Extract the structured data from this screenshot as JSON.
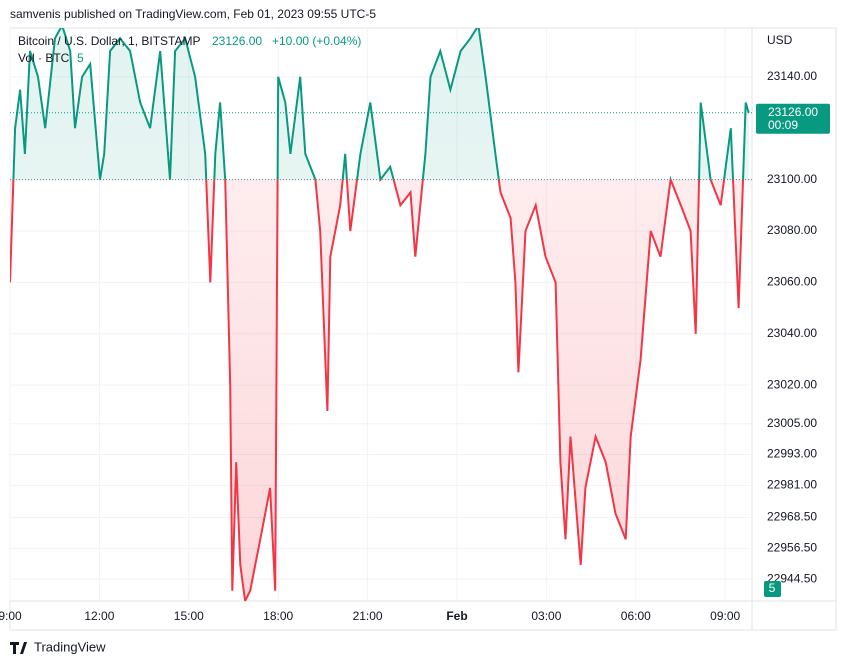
{
  "chart_data": {
    "type": "line",
    "header": "samvenis published on TradingView.com, Feb 01, 2023 09:55 UTC-5",
    "brand": "TradingView",
    "y_axis_label": "USD",
    "volume_label": "Vol · BTC",
    "volume_value": 5,
    "change_label": "+10.00 (+0.04%)",
    "baseline": 23100,
    "last_price": 23126,
    "last_price_label": "23126.00",
    "countdown": "00:09",
    "grid": true,
    "x": [
      9.0,
      9.17,
      9.34,
      9.5,
      9.67,
      9.94,
      10.18,
      10.51,
      10.75,
      11.02,
      11.18,
      11.42,
      11.69,
      12.02,
      12.16,
      12.36,
      12.69,
      13.03,
      13.37,
      13.7,
      14.04,
      14.37,
      14.54,
      14.88,
      15.21,
      15.55,
      15.72,
      15.89,
      16.05,
      16.22,
      16.39,
      16.46,
      16.59,
      16.73,
      16.89,
      17.06,
      17.23,
      17.4,
      17.73,
      17.9,
      18.0,
      18.24,
      18.41,
      18.74,
      18.91,
      19.25,
      19.41,
      19.58,
      19.65,
      19.75,
      20.08,
      20.25,
      20.42,
      20.76,
      21.09,
      21.43,
      21.76,
      22.1,
      22.44,
      22.6,
      22.77,
      22.94,
      23.11,
      23.44,
      23.78,
      24.12,
      24.45,
      24.72,
      24.96,
      25.29,
      25.46,
      25.8,
      25.96,
      26.06,
      26.3,
      26.64,
      26.97,
      27.31,
      27.47,
      27.64,
      27.81,
      28.15,
      28.31,
      28.65,
      28.99,
      29.32,
      29.66,
      29.83,
      30.16,
      30.5,
      30.83,
      31.17,
      31.51,
      31.84,
      32.01,
      32.18,
      32.51,
      32.85,
      33.19,
      33.45,
      33.69,
      33.79
    ],
    "series": [
      {
        "name": "Bitcoin / U.S. Dollar, 1, BITSTAMP",
        "color_up": "#089981",
        "color_down": "#f23645",
        "values": [
          23060,
          23120,
          23135,
          23110,
          23150,
          23140,
          23120,
          23155,
          23160,
          23150,
          23120,
          23140,
          23145,
          23100,
          23110,
          23150,
          23155,
          23150,
          23130,
          23120,
          23150,
          23100,
          23150,
          23155,
          23140,
          23110,
          23060,
          23110,
          23130,
          23100,
          23020,
          22940,
          22990,
          22950,
          22936,
          22940,
          22950,
          22960,
          22980,
          22940,
          23140,
          23130,
          23110,
          23140,
          23110,
          23100,
          23080,
          23030,
          23010,
          23070,
          23090,
          23110,
          23080,
          23110,
          23130,
          23100,
          23105,
          23090,
          23095,
          23070,
          23090,
          23110,
          23140,
          23150,
          23135,
          23150,
          23155,
          23160,
          23140,
          23110,
          23095,
          23085,
          23060,
          23025,
          23080,
          23090,
          23070,
          23060,
          22990,
          22960,
          23000,
          22950,
          22980,
          23000,
          22990,
          22970,
          22960,
          23000,
          23030,
          23080,
          23070,
          23100,
          23090,
          23080,
          23040,
          23130,
          23100,
          23090,
          23120,
          23050,
          23130,
          23126
        ]
      }
    ],
    "xlim": [
      9,
      33.9
    ],
    "xticks": [
      {
        "value": 9,
        "label": "9:00"
      },
      {
        "value": 12,
        "label": "12:00"
      },
      {
        "value": 15,
        "label": "15:00"
      },
      {
        "value": 18,
        "label": "18:00"
      },
      {
        "value": 21,
        "label": "21:00"
      },
      {
        "value": 24,
        "label": "Feb"
      },
      {
        "value": 27,
        "label": "03:00"
      },
      {
        "value": 30,
        "label": "06:00"
      },
      {
        "value": 33,
        "label": "09:00"
      }
    ],
    "ylim": [
      22936,
      23159
    ],
    "yticks": [
      {
        "value": 23140,
        "label": "23140.00"
      },
      {
        "value": 23100,
        "label": "23100.00"
      },
      {
        "value": 23080,
        "label": "23080.00"
      },
      {
        "value": 23060,
        "label": "23060.00"
      },
      {
        "value": 23040,
        "label": "23040.00"
      },
      {
        "value": 23020,
        "label": "23020.00"
      },
      {
        "value": 23005,
        "label": "23005.00"
      },
      {
        "value": 22993,
        "label": "22993.00"
      },
      {
        "value": 22981,
        "label": "22981.00"
      },
      {
        "value": 22968.5,
        "label": "22968.50"
      },
      {
        "value": 22956.5,
        "label": "22956.50"
      },
      {
        "value": 22944.5,
        "label": "22944.50"
      }
    ]
  }
}
